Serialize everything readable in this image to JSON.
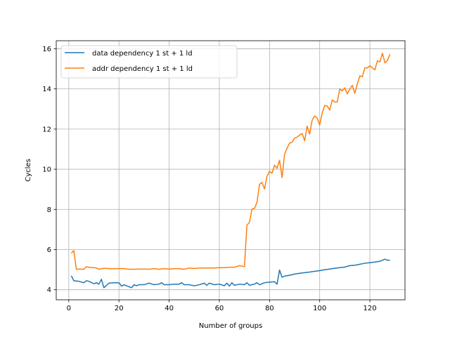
{
  "chart_data": {
    "type": "line",
    "title": "",
    "xlabel": "Number of groups",
    "ylabel": "Cycles",
    "xlim": [
      -5,
      134
    ],
    "ylim": [
      3.5,
      16.4
    ],
    "xticks": [
      0,
      20,
      40,
      60,
      80,
      100,
      120
    ],
    "yticks": [
      4,
      6,
      8,
      10,
      12,
      14,
      16
    ],
    "grid": true,
    "legend_position": "top-left",
    "series": [
      {
        "name": "data dependency 1 st + 1 ld",
        "color": "#1f77b4",
        "x": [
          1,
          2,
          4,
          6,
          7,
          8,
          10,
          11,
          12,
          13,
          14,
          16,
          18,
          20,
          21,
          22,
          24,
          25,
          26,
          27,
          28,
          30,
          32,
          34,
          36,
          37,
          38,
          40,
          42,
          44,
          45,
          46,
          48,
          50,
          52,
          54,
          55,
          56,
          58,
          60,
          62,
          63,
          64,
          65,
          66,
          68,
          70,
          71,
          72,
          74,
          75,
          76,
          78,
          80,
          82,
          83,
          84,
          85,
          86,
          88,
          90,
          92,
          94,
          96,
          98,
          100,
          102,
          104,
          106,
          108,
          110,
          112,
          114,
          116,
          118,
          120,
          122,
          124,
          126,
          127,
          128
        ],
        "y": [
          4.7,
          4.45,
          4.42,
          4.35,
          4.45,
          4.42,
          4.3,
          4.35,
          4.28,
          4.52,
          4.1,
          4.33,
          4.35,
          4.35,
          4.18,
          4.25,
          4.15,
          4.1,
          4.25,
          4.2,
          4.25,
          4.25,
          4.33,
          4.25,
          4.28,
          4.35,
          4.25,
          4.25,
          4.28,
          4.28,
          4.35,
          4.25,
          4.25,
          4.2,
          4.25,
          4.33,
          4.22,
          4.33,
          4.25,
          4.28,
          4.2,
          4.33,
          4.18,
          4.35,
          4.22,
          4.28,
          4.25,
          4.35,
          4.22,
          4.28,
          4.35,
          4.25,
          4.35,
          4.38,
          4.4,
          4.28,
          4.98,
          4.62,
          4.68,
          4.72,
          4.78,
          4.82,
          4.85,
          4.88,
          4.92,
          4.95,
          5.0,
          5.03,
          5.07,
          5.1,
          5.13,
          5.2,
          5.22,
          5.27,
          5.32,
          5.35,
          5.38,
          5.42,
          5.52,
          5.47,
          5.47
        ]
      },
      {
        "name": "addr dependency 1 st + 1 ld",
        "color": "#ff7f0e",
        "x": [
          1,
          2,
          3,
          4,
          6,
          7,
          8,
          10,
          11,
          12,
          14,
          16,
          18,
          20,
          22,
          24,
          26,
          28,
          30,
          32,
          34,
          36,
          38,
          40,
          42,
          44,
          46,
          48,
          50,
          52,
          54,
          56,
          58,
          60,
          62,
          64,
          66,
          68,
          70,
          71,
          72,
          73,
          74,
          75,
          76,
          77,
          78,
          79,
          80,
          81,
          82,
          83,
          84,
          85,
          86,
          87,
          88,
          89,
          90,
          91,
          92,
          93,
          94,
          95,
          96,
          97,
          98,
          99,
          100,
          101,
          102,
          103,
          104,
          105,
          106,
          107,
          108,
          109,
          110,
          111,
          112,
          113,
          114,
          115,
          116,
          117,
          118,
          119,
          120,
          121,
          122,
          123,
          124,
          125,
          126,
          127,
          128
        ],
        "y": [
          5.82,
          5.95,
          5.02,
          5.03,
          5.02,
          5.15,
          5.12,
          5.1,
          5.08,
          5.02,
          5.07,
          5.05,
          5.05,
          5.05,
          5.05,
          5.02,
          5.02,
          5.03,
          5.03,
          5.02,
          5.05,
          5.02,
          5.05,
          5.03,
          5.05,
          5.05,
          5.02,
          5.08,
          5.06,
          5.08,
          5.08,
          5.08,
          5.08,
          5.1,
          5.1,
          5.12,
          5.12,
          5.2,
          5.15,
          7.22,
          7.35,
          8.02,
          8.05,
          8.35,
          9.25,
          9.35,
          9.02,
          9.65,
          9.9,
          9.8,
          10.2,
          10.05,
          10.45,
          9.58,
          10.75,
          11.05,
          11.3,
          11.35,
          11.55,
          11.6,
          11.7,
          11.78,
          11.42,
          12.15,
          11.75,
          12.45,
          12.65,
          12.55,
          12.2,
          12.8,
          13.18,
          13.15,
          12.95,
          13.45,
          13.35,
          13.35,
          14.0,
          13.9,
          14.05,
          13.75,
          14.0,
          14.18,
          13.78,
          14.25,
          14.65,
          14.6,
          15.05,
          15.05,
          15.15,
          15.05,
          14.95,
          15.4,
          15.35,
          15.78,
          15.3,
          15.42,
          15.72
        ]
      }
    ]
  }
}
